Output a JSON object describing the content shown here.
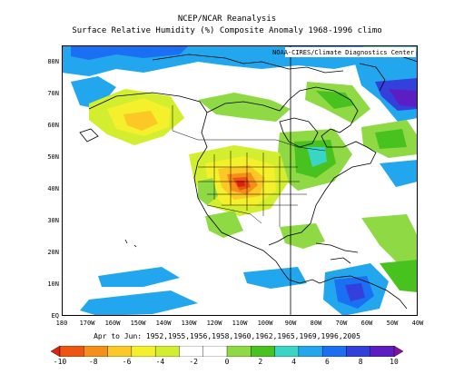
{
  "header": {
    "title": "NCEP/NCAR Reanalysis",
    "subtitle": "Surface Relative Humidity (%) Composite Anomaly 1968-1996 climo"
  },
  "credit": "NOAA-CIRES/Climate Diagnostics Center",
  "map": {
    "lat_labels": [
      "80N",
      "70N",
      "60N",
      "50N",
      "40N",
      "30N",
      "20N",
      "10N",
      "EQ"
    ],
    "lon_labels": [
      "180",
      "170W",
      "160W",
      "150W",
      "140W",
      "130W",
      "120W",
      "110W",
      "100W",
      "90W",
      "80W",
      "70W",
      "60W",
      "50W",
      "40W"
    ],
    "lat_range": [
      0,
      85
    ],
    "lon_range": [
      -180,
      -40
    ]
  },
  "caption": "Apr to Jun: 1952,1955,1956,1958,1960,1962,1965,1969,1996,2005",
  "colorbar": {
    "labels": [
      "-10",
      "-8",
      "-6",
      "-4",
      "-2",
      "0",
      "2",
      "4",
      "6",
      "8",
      "10"
    ],
    "colors": [
      "#dd2211",
      "#ee5511",
      "#f58f1a",
      "#fcc826",
      "#f4f02b",
      "#d2ee2f",
      "#ffffff",
      "#ffffff",
      "#8ed944",
      "#47c21e",
      "#39d6c6",
      "#22a7ee",
      "#1a6ff2",
      "#3340dc",
      "#5c1ec2",
      "#82129f"
    ]
  }
}
